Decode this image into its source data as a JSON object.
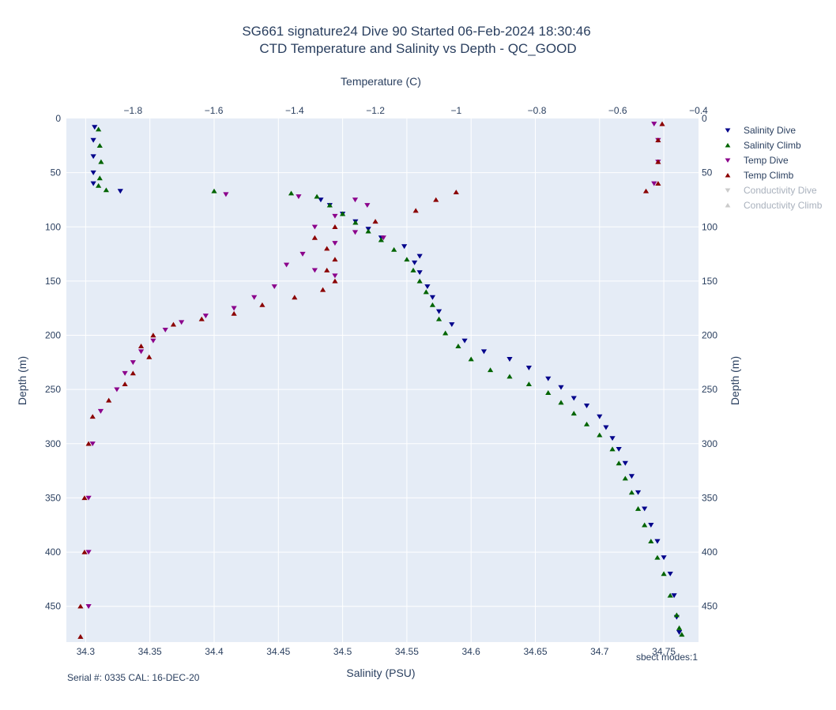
{
  "chart_data": {
    "type": "scatter",
    "title_line1": "SG661 signature24 Dive 90 Started 06-Feb-2024 18:30:46",
    "title_line2": "CTD Temperature and Salinity vs Depth - QC_GOOD",
    "xlabel_bottom": "Salinity (PSU)",
    "xlabel_top": "Temperature (C)",
    "ylabel": "Depth (m)",
    "salinity_range": [
      34.285,
      34.777
    ],
    "temperature_range": [
      -1.965,
      -0.4
    ],
    "depth_range": [
      0,
      483
    ],
    "y_reversed": true,
    "grid": true,
    "legend_position": "right",
    "salinity_ticks": [
      "34.3",
      "34.35",
      "34.4",
      "34.45",
      "34.5",
      "34.55",
      "34.6",
      "34.65",
      "34.7",
      "34.75"
    ],
    "temperature_ticks": [
      "−1.8",
      "−1.6",
      "−1.4",
      "−1.2",
      "−1",
      "−0.8",
      "−0.6",
      "−0.4"
    ],
    "depth_ticks": [
      "0",
      "50",
      "100",
      "150",
      "200",
      "250",
      "300",
      "350",
      "400",
      "450"
    ],
    "series": [
      {
        "name": "Salinity Dive",
        "axis": "salinity",
        "marker": "triangle-down",
        "color": "#00008b",
        "visible": true,
        "points": [
          [
            34.307,
            8
          ],
          [
            34.306,
            20
          ],
          [
            34.306,
            35
          ],
          [
            34.306,
            50
          ],
          [
            34.306,
            60
          ],
          [
            34.327,
            67
          ],
          [
            34.483,
            75
          ],
          [
            34.49,
            80
          ],
          [
            34.5,
            88
          ],
          [
            34.51,
            95
          ],
          [
            34.52,
            102
          ],
          [
            34.53,
            110
          ],
          [
            34.548,
            118
          ],
          [
            34.56,
            127
          ],
          [
            34.556,
            133
          ],
          [
            34.56,
            142
          ],
          [
            34.566,
            155
          ],
          [
            34.57,
            165
          ],
          [
            34.575,
            178
          ],
          [
            34.585,
            190
          ],
          [
            34.595,
            205
          ],
          [
            34.61,
            215
          ],
          [
            34.63,
            222
          ],
          [
            34.645,
            230
          ],
          [
            34.66,
            240
          ],
          [
            34.67,
            248
          ],
          [
            34.68,
            258
          ],
          [
            34.69,
            265
          ],
          [
            34.7,
            275
          ],
          [
            34.705,
            285
          ],
          [
            34.71,
            295
          ],
          [
            34.715,
            305
          ],
          [
            34.72,
            318
          ],
          [
            34.725,
            330
          ],
          [
            34.73,
            345
          ],
          [
            34.735,
            360
          ],
          [
            34.74,
            375
          ],
          [
            34.745,
            390
          ],
          [
            34.75,
            405
          ],
          [
            34.755,
            420
          ],
          [
            34.758,
            440
          ],
          [
            34.76,
            460
          ],
          [
            34.762,
            474
          ]
        ]
      },
      {
        "name": "Salinity Climb",
        "axis": "salinity",
        "marker": "triangle-up",
        "color": "#006400",
        "visible": true,
        "points": [
          [
            34.31,
            10
          ],
          [
            34.311,
            25
          ],
          [
            34.312,
            40
          ],
          [
            34.311,
            55
          ],
          [
            34.31,
            62
          ],
          [
            34.316,
            66
          ],
          [
            34.4,
            67
          ],
          [
            34.46,
            69
          ],
          [
            34.48,
            72
          ],
          [
            34.49,
            80
          ],
          [
            34.5,
            88
          ],
          [
            34.51,
            96
          ],
          [
            34.52,
            104
          ],
          [
            34.53,
            112
          ],
          [
            34.54,
            121
          ],
          [
            34.55,
            130
          ],
          [
            34.555,
            140
          ],
          [
            34.56,
            150
          ],
          [
            34.565,
            160
          ],
          [
            34.57,
            172
          ],
          [
            34.575,
            185
          ],
          [
            34.58,
            198
          ],
          [
            34.59,
            210
          ],
          [
            34.6,
            222
          ],
          [
            34.615,
            232
          ],
          [
            34.63,
            238
          ],
          [
            34.645,
            245
          ],
          [
            34.66,
            253
          ],
          [
            34.67,
            262
          ],
          [
            34.68,
            272
          ],
          [
            34.69,
            282
          ],
          [
            34.7,
            292
          ],
          [
            34.71,
            305
          ],
          [
            34.715,
            318
          ],
          [
            34.72,
            332
          ],
          [
            34.725,
            345
          ],
          [
            34.73,
            360
          ],
          [
            34.735,
            375
          ],
          [
            34.74,
            390
          ],
          [
            34.745,
            405
          ],
          [
            34.75,
            420
          ],
          [
            34.755,
            440
          ],
          [
            34.76,
            458
          ],
          [
            34.762,
            470
          ],
          [
            34.764,
            476
          ]
        ]
      },
      {
        "name": "Temp Dive",
        "axis": "temperature",
        "marker": "triangle-down",
        "color": "#8b008b",
        "visible": true,
        "points": [
          [
            -0.51,
            5
          ],
          [
            -0.5,
            20
          ],
          [
            -0.5,
            40
          ],
          [
            -0.51,
            60
          ],
          [
            -1.57,
            70
          ],
          [
            -1.39,
            72
          ],
          [
            -1.25,
            75
          ],
          [
            -1.22,
            80
          ],
          [
            -1.3,
            90
          ],
          [
            -1.35,
            100
          ],
          [
            -1.25,
            105
          ],
          [
            -1.18,
            110
          ],
          [
            -1.3,
            115
          ],
          [
            -1.38,
            125
          ],
          [
            -1.42,
            135
          ],
          [
            -1.35,
            140
          ],
          [
            -1.3,
            145
          ],
          [
            -1.45,
            155
          ],
          [
            -1.5,
            165
          ],
          [
            -1.55,
            175
          ],
          [
            -1.62,
            182
          ],
          [
            -1.68,
            188
          ],
          [
            -1.72,
            195
          ],
          [
            -1.75,
            205
          ],
          [
            -1.78,
            215
          ],
          [
            -1.8,
            225
          ],
          [
            -1.82,
            235
          ],
          [
            -1.84,
            250
          ],
          [
            -1.88,
            270
          ],
          [
            -1.9,
            300
          ],
          [
            -1.91,
            350
          ],
          [
            -1.91,
            400
          ],
          [
            -1.91,
            450
          ]
        ]
      },
      {
        "name": "Temp Climb",
        "axis": "temperature",
        "marker": "triangle-up",
        "color": "#8b0000",
        "visible": true,
        "points": [
          [
            -0.49,
            5
          ],
          [
            -0.5,
            20
          ],
          [
            -0.5,
            40
          ],
          [
            -0.5,
            60
          ],
          [
            -0.53,
            67
          ],
          [
            -1.0,
            68
          ],
          [
            -1.05,
            75
          ],
          [
            -1.1,
            85
          ],
          [
            -1.2,
            95
          ],
          [
            -1.3,
            100
          ],
          [
            -1.35,
            110
          ],
          [
            -1.32,
            120
          ],
          [
            -1.3,
            130
          ],
          [
            -1.32,
            140
          ],
          [
            -1.3,
            150
          ],
          [
            -1.33,
            158
          ],
          [
            -1.4,
            165
          ],
          [
            -1.48,
            172
          ],
          [
            -1.55,
            180
          ],
          [
            -1.63,
            185
          ],
          [
            -1.7,
            190
          ],
          [
            -1.75,
            200
          ],
          [
            -1.78,
            210
          ],
          [
            -1.76,
            220
          ],
          [
            -1.8,
            235
          ],
          [
            -1.82,
            245
          ],
          [
            -1.86,
            260
          ],
          [
            -1.9,
            275
          ],
          [
            -1.91,
            300
          ],
          [
            -1.92,
            350
          ],
          [
            -1.92,
            400
          ],
          [
            -1.93,
            450
          ],
          [
            -1.93,
            478
          ]
        ]
      },
      {
        "name": "Conductivity Dive",
        "axis": "none",
        "marker": "triangle-down",
        "color": "#a9a9a9",
        "visible": false,
        "points": []
      },
      {
        "name": "Conductivity Climb",
        "axis": "none",
        "marker": "triangle-up",
        "color": "#a9a9a9",
        "visible": false,
        "points": []
      }
    ],
    "annotations": {
      "sbect_modes": "sbect modes:1",
      "serial": "Serial #: 0335  CAL: 16-DEC-20"
    }
  }
}
